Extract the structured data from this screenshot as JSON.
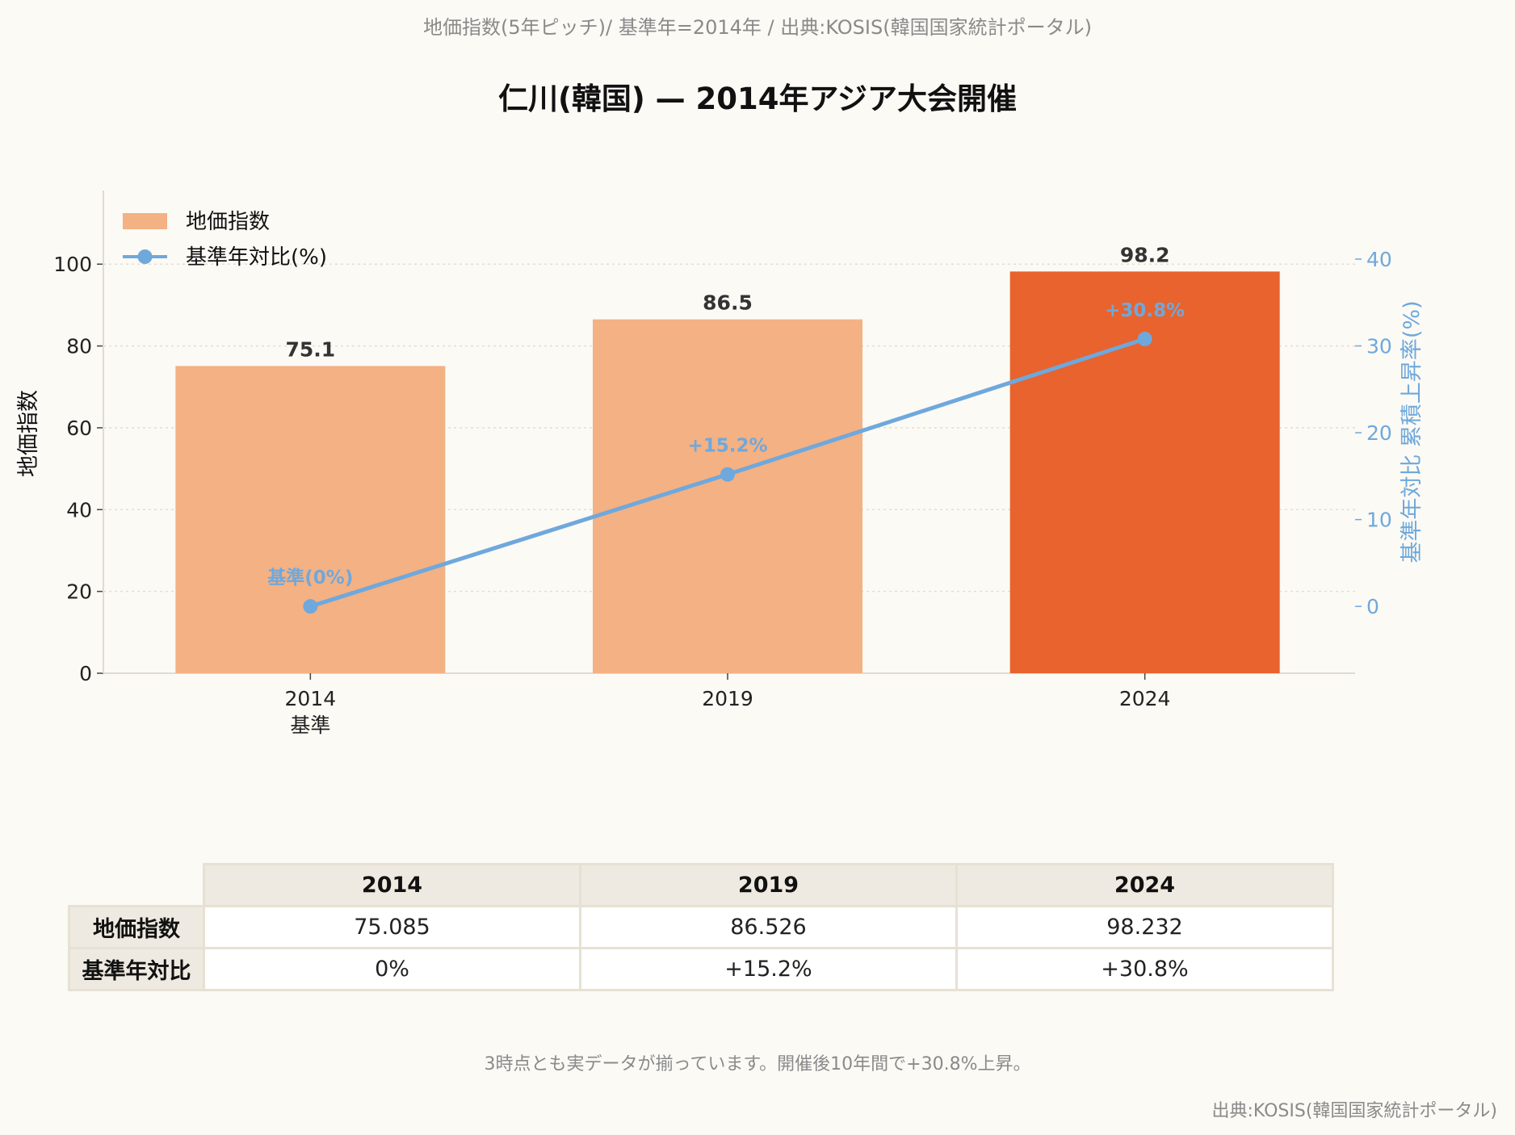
{
  "page": {
    "subtitle": "地価指数(5年ピッチ)/ 基準年=2014年 / 出典:KOSIS(韓国国家統計ポータル)",
    "title": "仁川(韓国) — 2014年アジア大会開催",
    "note": "3時点とも実データが揃っています。開催後10年間で+30.8%上昇。",
    "source": "出典:KOSIS(韓国国家統計ポータル)"
  },
  "chart_data": {
    "type": "bar",
    "categories": [
      "2014",
      "2019",
      "2024"
    ],
    "category_sublabels": [
      "基準",
      "",
      ""
    ],
    "series": [
      {
        "name": "地価指数",
        "kind": "bar",
        "axis": "left",
        "values": [
          75.1,
          86.5,
          98.2
        ],
        "data_labels": [
          "75.1",
          "86.5",
          "98.2"
        ],
        "colors": [
          "#f4b183",
          "#f4b183",
          "#e8632d"
        ]
      },
      {
        "name": "基準年対比(%)",
        "kind": "line",
        "axis": "right",
        "values": [
          0,
          15.2,
          30.8
        ],
        "data_labels": [
          "基準(0%)",
          "+15.2%",
          "+30.8%"
        ],
        "color": "#6fa8dc"
      }
    ],
    "ylabel": "地価指数",
    "y2label": "基準年対比 累積上昇率(%)",
    "ylim": [
      0,
      118
    ],
    "yticks": [
      0,
      20,
      40,
      60,
      80,
      100
    ],
    "y2lim": [
      -7.7,
      47.9
    ],
    "y2ticks": [
      0,
      10,
      20,
      30,
      40
    ],
    "legend": "top-left",
    "grid": true
  },
  "table": {
    "columns": [
      "2014",
      "2019",
      "2024"
    ],
    "rows": [
      {
        "label": "地価指数",
        "values": [
          "75.085",
          "86.526",
          "98.232"
        ]
      },
      {
        "label": "基準年対比",
        "values": [
          "0%",
          "+15.2%",
          "+30.8%"
        ]
      }
    ]
  }
}
